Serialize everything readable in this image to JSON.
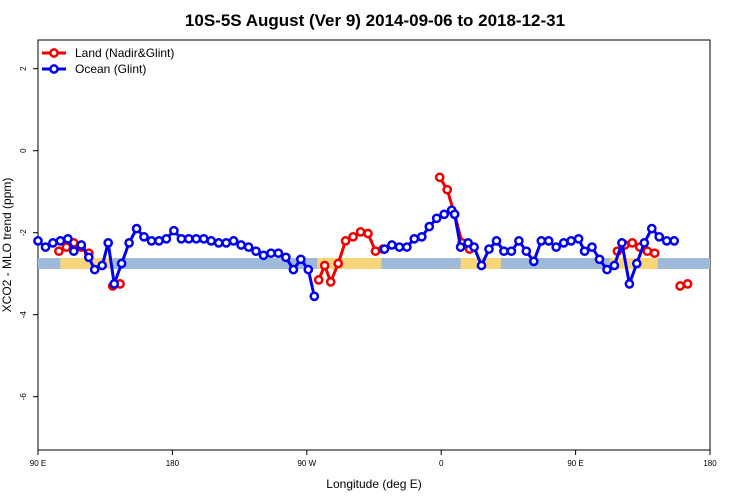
{
  "chart_data": {
    "type": "line",
    "title": "10S-5S August (Ver 9)   2014-09-06 to 2018-12-31",
    "xlabel": "Longitude (deg E)",
    "ylabel": "XCO2 - MLO trend (ppm)",
    "x_ticks": [
      {
        "pos": 90,
        "label": "90 E"
      },
      {
        "pos": 180,
        "label": "180"
      },
      {
        "pos": 270,
        "label": "90 W"
      },
      {
        "pos": 360,
        "label": "0"
      },
      {
        "pos": 450,
        "label": "90 E"
      },
      {
        "pos": 540,
        "label": "180"
      }
    ],
    "y_ticks": [
      {
        "value": 2,
        "label": "2"
      },
      {
        "value": 0,
        "label": "0"
      },
      {
        "value": -2,
        "label": "-2"
      },
      {
        "value": -4,
        "label": "-4"
      },
      {
        "value": -6,
        "label": "-6"
      }
    ],
    "xlim": [
      90,
      540
    ],
    "ylim": [
      -7.3,
      2.7
    ],
    "grid": false,
    "legend_position": "top-left",
    "land_ocean_strip": {
      "y": -2.75,
      "ocean_color": "#9fb9d9",
      "land_color": "#f7d67a",
      "land_segments": [
        [
          105,
          140
        ],
        [
          277,
          320
        ],
        [
          373,
          400
        ],
        [
          473,
          505
        ]
      ]
    },
    "series": [
      {
        "name": "Land (Nadir&Glint)",
        "color": "#ee0000",
        "segments": [
          [
            [
              104,
              -2.45
            ],
            [
              109,
              -2.35
            ],
            [
              114,
              -2.25
            ],
            [
              119,
              -2.35
            ],
            [
              124,
              -2.5
            ]
          ],
          [
            [
              140,
              -3.3
            ],
            [
              145,
              -3.25
            ]
          ],
          [
            [
              278,
              -3.15
            ],
            [
              282,
              -2.8
            ],
            [
              286,
              -3.2
            ],
            [
              291,
              -2.75
            ],
            [
              296,
              -2.2
            ],
            [
              301,
              -2.1
            ],
            [
              306,
              -1.98
            ],
            [
              311,
              -2.02
            ],
            [
              316,
              -2.45
            ],
            [
              321,
              -2.4
            ]
          ],
          [
            [
              359,
              -0.65
            ],
            [
              364,
              -0.95
            ],
            [
              369,
              -1.55
            ],
            [
              374,
              -2.25
            ],
            [
              379,
              -2.4
            ]
          ],
          [
            [
              478,
              -2.45
            ],
            [
              483,
              -2.3
            ],
            [
              488,
              -2.25
            ],
            [
              493,
              -2.35
            ],
            [
              498,
              -2.45
            ],
            [
              503,
              -2.5
            ]
          ],
          [
            [
              520,
              -3.3
            ],
            [
              525,
              -3.25
            ]
          ]
        ]
      },
      {
        "name": "Ocean (Glint)",
        "color": "#0000ee",
        "segments": [
          [
            [
              90,
              -2.2
            ],
            [
              95,
              -2.35
            ],
            [
              100,
              -2.25
            ],
            [
              105,
              -2.2
            ],
            [
              110,
              -2.15
            ],
            [
              114,
              -2.45
            ],
            [
              119,
              -2.3
            ],
            [
              124,
              -2.6
            ],
            [
              128,
              -2.9
            ],
            [
              133,
              -2.8
            ],
            [
              137,
              -2.25
            ],
            [
              141,
              -3.25
            ],
            [
              146,
              -2.75
            ],
            [
              151,
              -2.25
            ],
            [
              156,
              -1.9
            ],
            [
              161,
              -2.1
            ],
            [
              166,
              -2.2
            ],
            [
              171,
              -2.2
            ],
            [
              176,
              -2.15
            ],
            [
              181,
              -1.95
            ],
            [
              186,
              -2.15
            ],
            [
              191,
              -2.15
            ],
            [
              196,
              -2.15
            ],
            [
              201,
              -2.15
            ],
            [
              206,
              -2.2
            ],
            [
              211,
              -2.25
            ],
            [
              216,
              -2.25
            ],
            [
              221,
              -2.2
            ],
            [
              226,
              -2.3
            ],
            [
              231,
              -2.35
            ],
            [
              236,
              -2.45
            ],
            [
              241,
              -2.55
            ],
            [
              246,
              -2.5
            ],
            [
              251,
              -2.5
            ],
            [
              256,
              -2.6
            ],
            [
              261,
              -2.9
            ],
            [
              266,
              -2.65
            ],
            [
              271,
              -2.9
            ],
            [
              275,
              -3.55
            ]
          ],
          [
            [
              322,
              -2.4
            ],
            [
              327,
              -2.3
            ],
            [
              332,
              -2.35
            ],
            [
              337,
              -2.35
            ],
            [
              342,
              -2.15
            ],
            [
              347,
              -2.1
            ],
            [
              352,
              -1.85
            ],
            [
              357,
              -1.65
            ],
            [
              362,
              -1.55
            ],
            [
              367,
              -1.45
            ]
          ],
          [
            [
              369,
              -1.55
            ],
            [
              373,
              -2.35
            ],
            [
              378,
              -2.25
            ],
            [
              382,
              -2.35
            ],
            [
              387,
              -2.8
            ],
            [
              392,
              -2.4
            ],
            [
              397,
              -2.2
            ],
            [
              402,
              -2.45
            ],
            [
              407,
              -2.45
            ],
            [
              412,
              -2.2
            ],
            [
              417,
              -2.45
            ],
            [
              422,
              -2.7
            ],
            [
              427,
              -2.2
            ],
            [
              432,
              -2.2
            ],
            [
              437,
              -2.35
            ],
            [
              442,
              -2.25
            ],
            [
              447,
              -2.2
            ],
            [
              452,
              -2.15
            ],
            [
              456,
              -2.45
            ],
            [
              461,
              -2.35
            ],
            [
              466,
              -2.65
            ],
            [
              471,
              -2.9
            ],
            [
              476,
              -2.8
            ],
            [
              481,
              -2.25
            ],
            [
              486,
              -3.25
            ],
            [
              491,
              -2.75
            ],
            [
              496,
              -2.25
            ],
            [
              501,
              -1.9
            ],
            [
              506,
              -2.1
            ],
            [
              511,
              -2.2
            ],
            [
              516,
              -2.2
            ]
          ]
        ]
      }
    ]
  }
}
